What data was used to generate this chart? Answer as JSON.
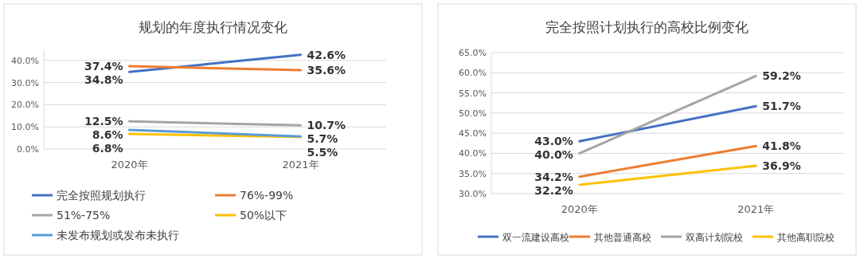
{
  "chart_data": [
    {
      "type": "line",
      "title": "规划的年度执行情况变化",
      "categories": [
        "2020年",
        "2021年"
      ],
      "ylim": [
        0,
        45
      ],
      "yticks": [
        {
          "value": 0,
          "label": "0.0%"
        },
        {
          "value": 10,
          "label": "10.0%"
        },
        {
          "value": 20,
          "label": "20.0%"
        },
        {
          "value": 30,
          "label": "30.0%"
        },
        {
          "value": 40,
          "label": "40.0%"
        }
      ],
      "grid": "y",
      "legend": "bottom",
      "series": [
        {
          "name": "完全按照规划执行",
          "color": "#4472c4",
          "values": [
            34.8,
            42.6
          ],
          "value_labels": [
            "34.8%",
            "42.6%"
          ]
        },
        {
          "name": "76%-99%",
          "color": "#ed7d31",
          "values": [
            37.4,
            35.6
          ],
          "value_labels": [
            "37.4%",
            "35.6%"
          ]
        },
        {
          "name": "51%-75%",
          "color": "#a5a5a5",
          "values": [
            12.5,
            10.7
          ],
          "value_labels": [
            "12.5%",
            "10.7%"
          ]
        },
        {
          "name": "50%以下",
          "color": "#ffc000",
          "values": [
            6.8,
            5.5
          ],
          "value_labels": [
            "6.8%",
            "5.5%"
          ]
        },
        {
          "name": "未发布规划或发布未执行",
          "color": "#5b9bd5",
          "values": [
            8.6,
            5.7
          ],
          "value_labels": [
            "8.6%",
            "5.7%"
          ]
        }
      ]
    },
    {
      "type": "line",
      "title": "完全按照计划执行的高校比例变化",
      "categories": [
        "2020年",
        "2021年"
      ],
      "ylim": [
        30,
        65
      ],
      "yticks": [
        {
          "value": 30,
          "label": "30.0%"
        },
        {
          "value": 35,
          "label": "35.0%"
        },
        {
          "value": 40,
          "label": "40.0%"
        },
        {
          "value": 45,
          "label": "45.0%"
        },
        {
          "value": 50,
          "label": "50.0%"
        },
        {
          "value": 55,
          "label": "55.0%"
        },
        {
          "value": 60,
          "label": "60.0%"
        },
        {
          "value": 65,
          "label": "65.0%"
        }
      ],
      "grid": "y",
      "legend": "bottom",
      "series": [
        {
          "name": "双一流建设高校",
          "color": "#4472c4",
          "values": [
            43.0,
            51.7
          ],
          "value_labels": [
            "43.0%",
            "51.7%"
          ]
        },
        {
          "name": "其他普通高校",
          "color": "#ed7d31",
          "values": [
            34.2,
            41.8
          ],
          "value_labels": [
            "34.2%",
            "41.8%"
          ]
        },
        {
          "name": "双高计划院校",
          "color": "#a5a5a5",
          "values": [
            40.0,
            59.2
          ],
          "value_labels": [
            "40.0%",
            "59.2%"
          ]
        },
        {
          "name": "其他高职院校",
          "color": "#ffc000",
          "values": [
            32.2,
            36.9
          ],
          "value_labels": [
            "32.2%",
            "36.9%"
          ]
        }
      ]
    }
  ]
}
